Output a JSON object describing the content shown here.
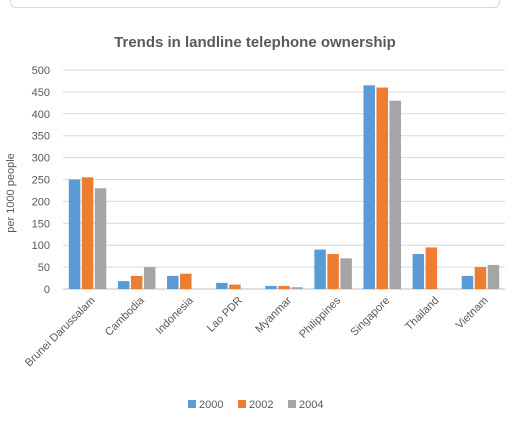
{
  "chart_data": {
    "type": "bar",
    "title": "Trends in landline telephone ownership",
    "xlabel": "",
    "ylabel": "per 1000 people",
    "ylim": [
      0,
      500
    ],
    "yticks": [
      0,
      50,
      100,
      150,
      200,
      250,
      300,
      350,
      400,
      450,
      500
    ],
    "grid": true,
    "legend_position": "bottom",
    "categories": [
      "Brunei Darussalam",
      "Cambodia",
      "Indonesia",
      "Lao PDR",
      "Myanmar",
      "Philippines",
      "Singapore",
      "Thailand",
      "Vietnam"
    ],
    "series": [
      {
        "name": "2000",
        "color": "#5b9bd5",
        "values": [
          250,
          18,
          30,
          14,
          7,
          90,
          465,
          80,
          30
        ]
      },
      {
        "name": "2002",
        "color": "#ed7d31",
        "values": [
          255,
          30,
          35,
          10,
          7,
          80,
          460,
          95,
          50
        ]
      },
      {
        "name": "2004",
        "color": "#a5a5a5",
        "values": [
          230,
          50,
          0,
          0,
          4,
          70,
          430,
          0,
          55
        ]
      }
    ]
  }
}
